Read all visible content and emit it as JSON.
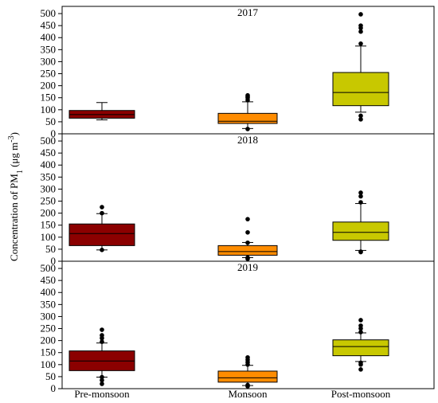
{
  "chart_data": {
    "type": "box",
    "ylabel": "Concentration of PM",
    "ylabel_sub": "1",
    "ylabel_unit": " (μg m",
    "ylabel_sup": "-3",
    "ylabel_close": ")",
    "categories": [
      "Pre-monsoon",
      "Monsoon",
      "Post-monsoon"
    ],
    "colors": {
      "Pre-monsoon": "#8b0000",
      "Monsoon": "#ff8c00",
      "Post-monsoon": "#c8c800"
    },
    "yticks": [
      0,
      50,
      100,
      150,
      200,
      250,
      300,
      350,
      400,
      450,
      500
    ],
    "ylim": [
      0,
      530
    ],
    "panels": [
      {
        "title": "2017",
        "boxes": [
          {
            "category": "Pre-monsoon",
            "whisker_low": 58,
            "q1": 65,
            "median": 80,
            "q3": 97,
            "whisker_high": 130,
            "outliers": []
          },
          {
            "category": "Monsoon",
            "whisker_low": 22,
            "q1": 43,
            "median": 52,
            "q3": 85,
            "whisker_high": 133,
            "outliers": [
              20,
              140,
              150,
              155,
              160
            ]
          },
          {
            "category": "Post-monsoon",
            "whisker_low": 90,
            "q1": 117,
            "median": 172,
            "q3": 255,
            "whisker_high": 365,
            "outliers": [
              60,
              75,
              375,
              425,
              440,
              450,
              497
            ]
          }
        ]
      },
      {
        "title": "2018",
        "boxes": [
          {
            "category": "Pre-monsoon",
            "whisker_low": 47,
            "q1": 65,
            "median": 115,
            "q3": 155,
            "whisker_high": 198,
            "outliers": [
              47,
              200,
              225
            ]
          },
          {
            "category": "Monsoon",
            "whisker_low": 15,
            "q1": 25,
            "median": 40,
            "q3": 65,
            "whisker_high": 78,
            "outliers": [
              10,
              15,
              77,
              120,
              175
            ]
          },
          {
            "category": "Post-monsoon",
            "whisker_low": 45,
            "q1": 87,
            "median": 120,
            "q3": 163,
            "whisker_high": 240,
            "outliers": [
              40,
              38,
              245,
              270,
              285
            ]
          }
        ]
      },
      {
        "title": "2019",
        "boxes": [
          {
            "category": "Pre-monsoon",
            "whisker_low": 48,
            "q1": 75,
            "median": 115,
            "q3": 157,
            "whisker_high": 190,
            "outliers": [
              20,
              35,
              48,
              195,
              210,
              222,
              245
            ]
          },
          {
            "category": "Monsoon",
            "whisker_low": 13,
            "q1": 27,
            "median": 45,
            "q3": 73,
            "whisker_high": 97,
            "outliers": [
              10,
              15,
              100,
              110,
              120,
              130
            ]
          },
          {
            "category": "Post-monsoon",
            "whisker_low": 113,
            "q1": 137,
            "median": 175,
            "q3": 203,
            "whisker_high": 232,
            "outliers": [
              80,
              100,
              108,
              235,
              250,
              262,
              285
            ]
          }
        ]
      }
    ]
  }
}
